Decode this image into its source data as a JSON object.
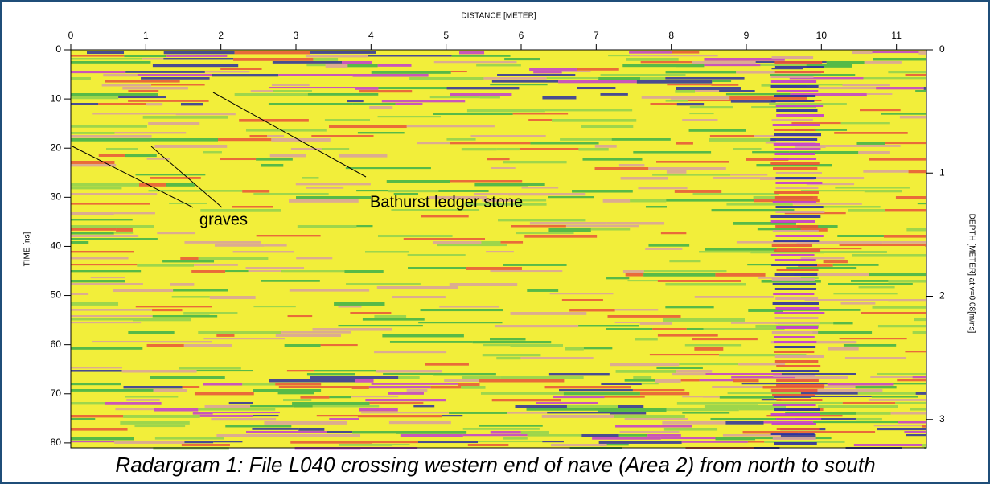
{
  "chart_data": {
    "type": "radargram",
    "xlabel": "DISTANCE [METER]",
    "ylabel": "TIME [ns]",
    "y2label": "DEPTH [METER] at v=0.08[m/ns]",
    "xlim": [
      0,
      11.4
    ],
    "xticks": [
      0,
      1,
      2,
      3,
      4,
      5,
      6,
      7,
      8,
      9,
      10,
      11
    ],
    "ylim": [
      0,
      81
    ],
    "yticks": [
      0,
      10,
      20,
      30,
      40,
      50,
      60,
      70,
      80
    ],
    "y2lim": [
      0,
      3.23
    ],
    "y2ticks": [
      0,
      1,
      2,
      3
    ],
    "annotations": [
      "Bathurst ledger stone",
      "graves"
    ],
    "caption": "Radargram 1: File L040 crossing western end of nave (Area 2) from north to south"
  }
}
